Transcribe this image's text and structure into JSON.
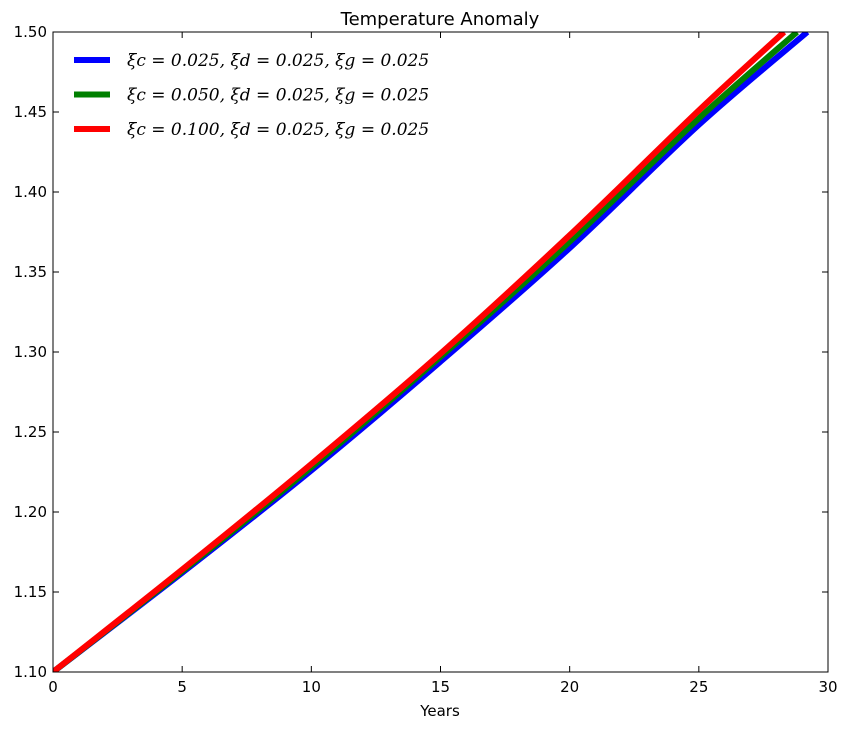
{
  "chart_data": {
    "type": "line",
    "title": "Temperature Anomaly",
    "xlabel": "Years",
    "ylabel": "",
    "xlim": [
      0,
      30
    ],
    "ylim": [
      1.1,
      1.5
    ],
    "xticks": [
      0,
      5,
      10,
      15,
      20,
      25,
      30
    ],
    "xtick_labels": [
      "0",
      "5",
      "10",
      "15",
      "20",
      "25",
      "30"
    ],
    "yticks": [
      1.1,
      1.15,
      1.2,
      1.25,
      1.3,
      1.35,
      1.4,
      1.45,
      1.5
    ],
    "ytick_labels": [
      "1.10",
      "1.15",
      "1.20",
      "1.25",
      "1.30",
      "1.35",
      "1.40",
      "1.45",
      "1.50"
    ],
    "grid": false,
    "legend_position": "top-left",
    "series": [
      {
        "name": "ξc = 0.025, ξd = 0.025, ξg = 0.025",
        "color": "#0000ff",
        "x": [
          0,
          5,
          10,
          15,
          20,
          25,
          29.2
        ],
        "y": [
          1.1,
          1.162,
          1.226,
          1.294,
          1.365,
          1.442,
          1.5
        ]
      },
      {
        "name": "ξc = 0.050, ξd = 0.025, ξg = 0.025",
        "color": "#008000",
        "x": [
          0,
          5,
          10,
          15,
          20,
          25,
          28.8
        ],
        "y": [
          1.1,
          1.163,
          1.228,
          1.297,
          1.369,
          1.446,
          1.5
        ]
      },
      {
        "name": "ξc = 0.100, ξd = 0.025, ξg = 0.025",
        "color": "#ff0000",
        "x": [
          0,
          5,
          10,
          15,
          20,
          25,
          28.3
        ],
        "y": [
          1.1,
          1.164,
          1.23,
          1.299,
          1.373,
          1.451,
          1.5
        ]
      }
    ]
  }
}
